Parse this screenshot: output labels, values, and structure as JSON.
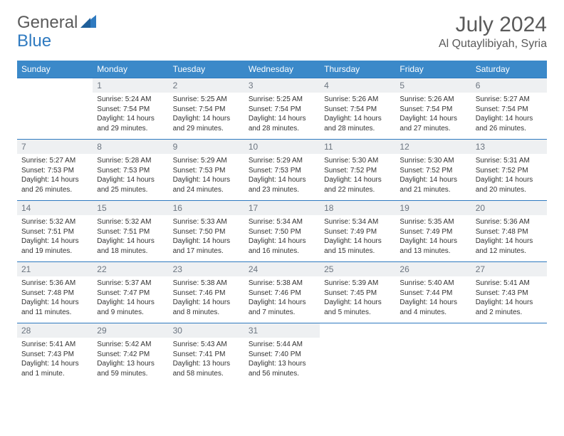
{
  "brand": {
    "part1": "General",
    "part2": "Blue"
  },
  "colors": {
    "header_bg": "#3b89c9",
    "header_text": "#ffffff",
    "cell_border_top": "#2f7ac0",
    "daynum_bg": "#eef0f2",
    "daynum_text": "#6c7580",
    "body_text": "#333333",
    "title_text": "#5a5a5a",
    "brand_gray": "#5a5a5a",
    "brand_blue": "#2f7ac0",
    "page_bg": "#ffffff"
  },
  "typography": {
    "title_fontsize": 30,
    "location_fontsize": 16,
    "dow_fontsize": 12,
    "daynum_fontsize": 12,
    "body_fontsize": 10
  },
  "title": "July 2024",
  "location": "Al Qutaylibiyah, Syria",
  "days_of_week": [
    "Sunday",
    "Monday",
    "Tuesday",
    "Wednesday",
    "Thursday",
    "Friday",
    "Saturday"
  ],
  "leading_blanks": 1,
  "days": [
    {
      "n": 1,
      "sunrise": "5:24 AM",
      "sunset": "7:54 PM",
      "daylight": "14 hours and 29 minutes."
    },
    {
      "n": 2,
      "sunrise": "5:25 AM",
      "sunset": "7:54 PM",
      "daylight": "14 hours and 29 minutes."
    },
    {
      "n": 3,
      "sunrise": "5:25 AM",
      "sunset": "7:54 PM",
      "daylight": "14 hours and 28 minutes."
    },
    {
      "n": 4,
      "sunrise": "5:26 AM",
      "sunset": "7:54 PM",
      "daylight": "14 hours and 28 minutes."
    },
    {
      "n": 5,
      "sunrise": "5:26 AM",
      "sunset": "7:54 PM",
      "daylight": "14 hours and 27 minutes."
    },
    {
      "n": 6,
      "sunrise": "5:27 AM",
      "sunset": "7:54 PM",
      "daylight": "14 hours and 26 minutes."
    },
    {
      "n": 7,
      "sunrise": "5:27 AM",
      "sunset": "7:53 PM",
      "daylight": "14 hours and 26 minutes."
    },
    {
      "n": 8,
      "sunrise": "5:28 AM",
      "sunset": "7:53 PM",
      "daylight": "14 hours and 25 minutes."
    },
    {
      "n": 9,
      "sunrise": "5:29 AM",
      "sunset": "7:53 PM",
      "daylight": "14 hours and 24 minutes."
    },
    {
      "n": 10,
      "sunrise": "5:29 AM",
      "sunset": "7:53 PM",
      "daylight": "14 hours and 23 minutes."
    },
    {
      "n": 11,
      "sunrise": "5:30 AM",
      "sunset": "7:52 PM",
      "daylight": "14 hours and 22 minutes."
    },
    {
      "n": 12,
      "sunrise": "5:30 AM",
      "sunset": "7:52 PM",
      "daylight": "14 hours and 21 minutes."
    },
    {
      "n": 13,
      "sunrise": "5:31 AM",
      "sunset": "7:52 PM",
      "daylight": "14 hours and 20 minutes."
    },
    {
      "n": 14,
      "sunrise": "5:32 AM",
      "sunset": "7:51 PM",
      "daylight": "14 hours and 19 minutes."
    },
    {
      "n": 15,
      "sunrise": "5:32 AM",
      "sunset": "7:51 PM",
      "daylight": "14 hours and 18 minutes."
    },
    {
      "n": 16,
      "sunrise": "5:33 AM",
      "sunset": "7:50 PM",
      "daylight": "14 hours and 17 minutes."
    },
    {
      "n": 17,
      "sunrise": "5:34 AM",
      "sunset": "7:50 PM",
      "daylight": "14 hours and 16 minutes."
    },
    {
      "n": 18,
      "sunrise": "5:34 AM",
      "sunset": "7:49 PM",
      "daylight": "14 hours and 15 minutes."
    },
    {
      "n": 19,
      "sunrise": "5:35 AM",
      "sunset": "7:49 PM",
      "daylight": "14 hours and 13 minutes."
    },
    {
      "n": 20,
      "sunrise": "5:36 AM",
      "sunset": "7:48 PM",
      "daylight": "14 hours and 12 minutes."
    },
    {
      "n": 21,
      "sunrise": "5:36 AM",
      "sunset": "7:48 PM",
      "daylight": "14 hours and 11 minutes."
    },
    {
      "n": 22,
      "sunrise": "5:37 AM",
      "sunset": "7:47 PM",
      "daylight": "14 hours and 9 minutes."
    },
    {
      "n": 23,
      "sunrise": "5:38 AM",
      "sunset": "7:46 PM",
      "daylight": "14 hours and 8 minutes."
    },
    {
      "n": 24,
      "sunrise": "5:38 AM",
      "sunset": "7:46 PM",
      "daylight": "14 hours and 7 minutes."
    },
    {
      "n": 25,
      "sunrise": "5:39 AM",
      "sunset": "7:45 PM",
      "daylight": "14 hours and 5 minutes."
    },
    {
      "n": 26,
      "sunrise": "5:40 AM",
      "sunset": "7:44 PM",
      "daylight": "14 hours and 4 minutes."
    },
    {
      "n": 27,
      "sunrise": "5:41 AM",
      "sunset": "7:43 PM",
      "daylight": "14 hours and 2 minutes."
    },
    {
      "n": 28,
      "sunrise": "5:41 AM",
      "sunset": "7:43 PM",
      "daylight": "14 hours and 1 minute."
    },
    {
      "n": 29,
      "sunrise": "5:42 AM",
      "sunset": "7:42 PM",
      "daylight": "13 hours and 59 minutes."
    },
    {
      "n": 30,
      "sunrise": "5:43 AM",
      "sunset": "7:41 PM",
      "daylight": "13 hours and 58 minutes."
    },
    {
      "n": 31,
      "sunrise": "5:44 AM",
      "sunset": "7:40 PM",
      "daylight": "13 hours and 56 minutes."
    }
  ],
  "labels": {
    "sunrise": "Sunrise:",
    "sunset": "Sunset:",
    "daylight": "Daylight:"
  }
}
